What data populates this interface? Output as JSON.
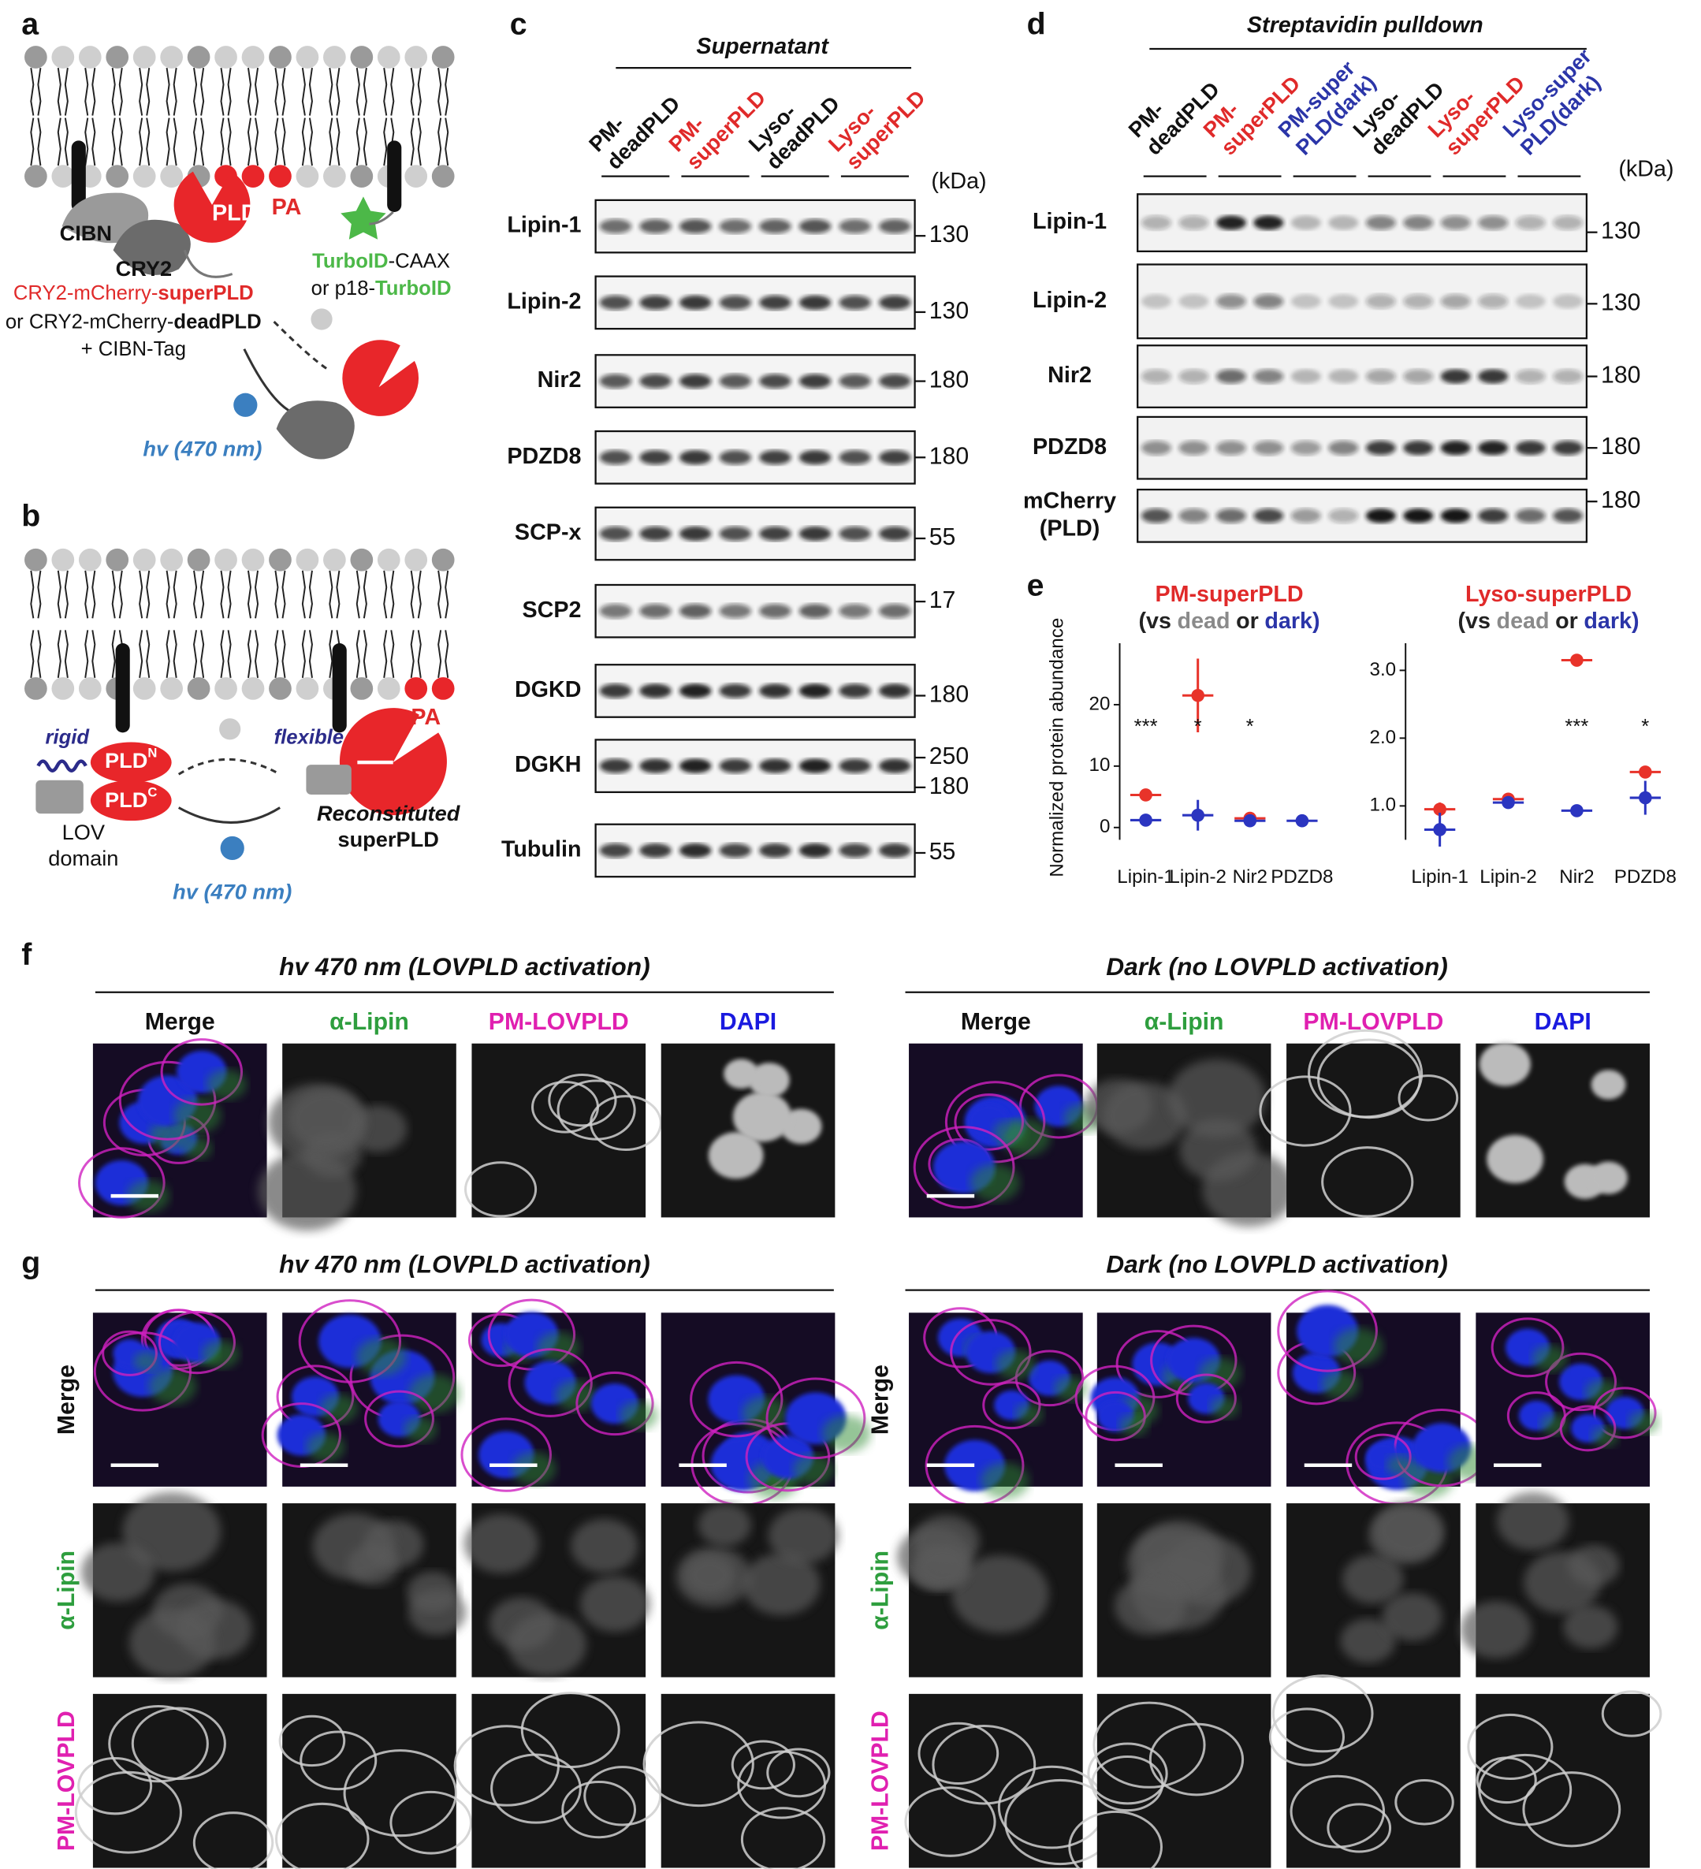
{
  "panel_a": {
    "label": "a",
    "pld": "PLD",
    "pa": "PA",
    "cibn": "CIBN",
    "cry2": "CRY2",
    "turbo": [
      [
        "TurboID",
        "-CAAX"
      ],
      [
        "or p18-",
        "TurboID"
      ]
    ],
    "construct": [
      [
        "CRY2-mCherry-",
        "superPLD"
      ],
      [
        "or CRY2-mCherry-",
        "deadPLD"
      ],
      [
        "+ CIBN-Tag"
      ]
    ],
    "light": "hv (470 nm)"
  },
  "panel_b": {
    "label": "b",
    "rigid": "rigid",
    "flexible": "flexible",
    "pld_n": [
      "PLD",
      "N"
    ],
    "pld_c": [
      "PLD",
      "C"
    ],
    "pa": "PA",
    "lov": [
      "LOV",
      "domain"
    ],
    "reconstituted": [
      "Reconstituted",
      "superPLD"
    ],
    "light": "hv (470 nm)"
  },
  "panel_c": {
    "label": "c",
    "header": "Supernatant",
    "unit": "(kDa)",
    "lanes": [
      [
        "PM-",
        "deadPLD"
      ],
      [
        "PM-",
        "superPLD"
      ],
      [
        "Lyso-",
        "deadPLD"
      ],
      [
        "Lyso-",
        "superPLD"
      ]
    ],
    "lane_colors": [
      "#111111",
      "#e02a2a",
      "#111111",
      "#e02a2a"
    ],
    "blots": [
      {
        "name": [
          "Lipin-1"
        ],
        "markers": [
          130
        ]
      },
      {
        "name": [
          "Lipin-2"
        ],
        "markers": [
          130
        ]
      },
      {
        "name": [
          "Nir2"
        ],
        "markers": [
          180
        ]
      },
      {
        "name": [
          "PDZD8"
        ],
        "markers": [
          180
        ]
      },
      {
        "name": [
          "SCP-x"
        ],
        "markers": [
          55
        ]
      },
      {
        "name": [
          "SCP2"
        ],
        "markers": [
          17
        ]
      },
      {
        "name": [
          "DGKD"
        ],
        "markers": [
          180
        ]
      },
      {
        "name": [
          "DGKH"
        ],
        "markers": [
          250,
          180
        ]
      },
      {
        "name": [
          "Tubulin"
        ],
        "markers": [
          55
        ]
      }
    ]
  },
  "panel_d": {
    "label": "d",
    "header": "Streptavidin pulldown",
    "unit": "(kDa)",
    "lanes": [
      [
        "PM-",
        "deadPLD"
      ],
      [
        "PM-",
        "superPLD"
      ],
      [
        "PM-super",
        "PLD(dark)"
      ],
      [
        "Lyso-",
        "deadPLD"
      ],
      [
        "Lyso-",
        "superPLD"
      ],
      [
        "Lyso-super",
        "PLD(dark)"
      ]
    ],
    "lane_colors": [
      "#111111",
      "#e02a2a",
      "#2b35a8",
      "#111111",
      "#e02a2a",
      "#2b35a8"
    ],
    "blots": [
      {
        "name": [
          "Lipin-1"
        ],
        "markers": [
          130
        ]
      },
      {
        "name": [
          "Lipin-2"
        ],
        "markers": [
          130
        ]
      },
      {
        "name": [
          "Nir2"
        ],
        "markers": [
          180
        ]
      },
      {
        "name": [
          "PDZD8"
        ],
        "markers": [
          180
        ]
      },
      {
        "name": [
          "mCherry",
          "(PLD)"
        ],
        "markers": [
          180
        ]
      }
    ]
  },
  "panel_e": {
    "label": "e"
  },
  "chart_data": [
    {
      "type": "errorbar",
      "title": "PM-superPLD",
      "title_color": "#e02a2a",
      "subtitle": [
        "(vs",
        "dead",
        "or",
        "dark)"
      ],
      "subtitle_colors": [
        "#222222",
        "#8a8a8a",
        "#222222",
        "#2b35a8"
      ],
      "ylabel": "Normalized protein abundance",
      "categories": [
        "Lipin-1",
        "Lipin-2",
        "Nir2",
        "PDZD8"
      ],
      "series": [
        {
          "color": "#e8332a",
          "values": [
            5.3,
            21.5,
            1.5,
            null
          ],
          "errors": [
            0.3,
            6,
            0.3,
            null
          ]
        },
        {
          "color": "#2b35c0",
          "values": [
            1.2,
            2,
            1.1,
            1.1
          ],
          "errors": [
            0.3,
            2.5,
            0.3,
            0.2
          ]
        }
      ],
      "annotations": [
        "***",
        "*",
        "*",
        null
      ],
      "ylim": [
        -2,
        30
      ],
      "yticks": [
        0,
        10,
        20
      ]
    },
    {
      "type": "errorbar",
      "title": "Lyso-superPLD",
      "title_color": "#e02a2a",
      "subtitle": [
        "(vs",
        "dead",
        "or",
        "dark)"
      ],
      "subtitle_colors": [
        "#222222",
        "#8a8a8a",
        "#222222",
        "#2b35a8"
      ],
      "categories": [
        "Lipin-1",
        "Lipin-2",
        "Nir2",
        "PDZD8"
      ],
      "series": [
        {
          "color": "#e8332a",
          "values": [
            0.95,
            1.1,
            3.15,
            1.5
          ],
          "errors": [
            0.1,
            0.05,
            0.03,
            0.05
          ]
        },
        {
          "color": "#2b35c0",
          "values": [
            0.65,
            1.05,
            0.93,
            1.12
          ],
          "errors": [
            0.25,
            0.08,
            0.05,
            0.25
          ]
        }
      ],
      "annotations": [
        null,
        null,
        "***",
        "*"
      ],
      "ylim": [
        0.5,
        3.4
      ],
      "yticks": [
        {
          "value": 1,
          "label": "1.0"
        },
        {
          "value": 2,
          "label": "2.0"
        },
        {
          "value": 3,
          "label": "3.0"
        }
      ]
    }
  ],
  "panel_f": {
    "label": "f",
    "groups": [
      {
        "title": "hv 470 nm (LOVPLD activation)"
      },
      {
        "title": "Dark (no LOVPLD activation)"
      }
    ],
    "channels": [
      "Merge",
      "α-Lipin",
      "PM-LOVPLD",
      "DAPI"
    ],
    "channel_colors": [
      "#111111",
      "#2e9e3e",
      "#e020b0",
      "#1a1adf"
    ]
  },
  "panel_g": {
    "label": "g",
    "groups": [
      {
        "title": "hv 470 nm (LOVPLD activation)"
      },
      {
        "title": "Dark (no LOVPLD activation)"
      }
    ],
    "rows": [
      "Merge",
      "α-Lipin",
      "PM-LOVPLD"
    ],
    "row_colors": [
      "#111111",
      "#2e9e3e",
      "#e020b0"
    ]
  }
}
